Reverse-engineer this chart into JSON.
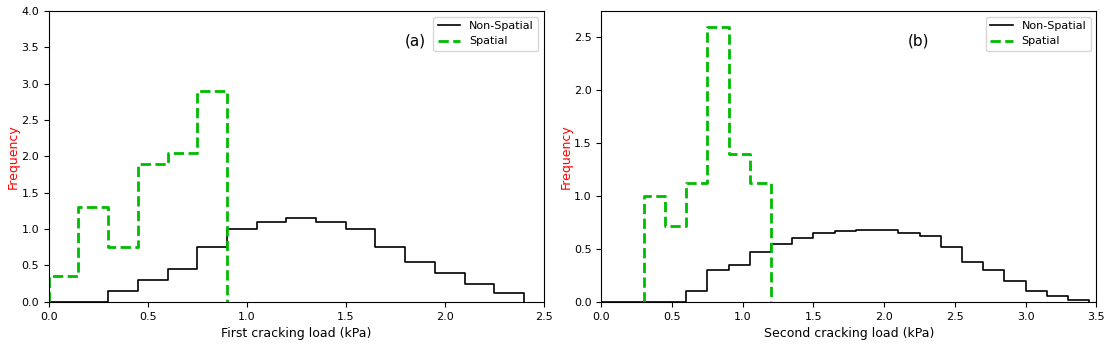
{
  "chart_a": {
    "title": "(a)",
    "xlabel": "First cracking load (kPa)",
    "ylabel": "Frequency",
    "xlim": [
      0,
      2.5
    ],
    "ylim": [
      0,
      4
    ],
    "yticks": [
      0,
      0.5,
      1,
      1.5,
      2,
      2.5,
      3,
      3.5,
      4
    ],
    "xticks": [
      0,
      0.5,
      1,
      1.5,
      2,
      2.5
    ],
    "non_spatial_bins": [
      0.0,
      0.15,
      0.3,
      0.45,
      0.6,
      0.75,
      0.9,
      1.05,
      1.2,
      1.35,
      1.5,
      1.65,
      1.8,
      1.95,
      2.1,
      2.25,
      2.4
    ],
    "non_spatial_vals": [
      0.0,
      0.0,
      0.15,
      0.3,
      0.45,
      0.75,
      1.0,
      1.1,
      1.15,
      1.1,
      1.0,
      0.75,
      0.55,
      0.4,
      0.25,
      0.12
    ],
    "spatial_bins": [
      0.0,
      0.15,
      0.3,
      0.45,
      0.6,
      0.75,
      0.9
    ],
    "spatial_vals": [
      0.35,
      1.3,
      0.75,
      1.9,
      2.05,
      2.9
    ]
  },
  "chart_b": {
    "title": "(b)",
    "xlabel": "Second cracking load (kPa)",
    "ylabel": "Frequency",
    "xlim": [
      0,
      3.5
    ],
    "ylim": [
      0,
      2.75
    ],
    "yticks": [
      0,
      0.5,
      1,
      1.5,
      2,
      2.5
    ],
    "xticks": [
      0,
      0.5,
      1,
      1.5,
      2,
      2.5,
      3,
      3.5
    ],
    "non_spatial_bins": [
      0.0,
      0.15,
      0.3,
      0.45,
      0.6,
      0.75,
      0.9,
      1.05,
      1.2,
      1.35,
      1.5,
      1.65,
      1.8,
      1.95,
      2.1,
      2.25,
      2.4,
      2.55,
      2.7,
      2.85,
      3.0,
      3.15,
      3.3,
      3.45
    ],
    "non_spatial_vals": [
      0.0,
      0.0,
      0.0,
      0.0,
      0.1,
      0.3,
      0.35,
      0.47,
      0.55,
      0.6,
      0.65,
      0.67,
      0.68,
      0.68,
      0.65,
      0.62,
      0.52,
      0.38,
      0.3,
      0.2,
      0.1,
      0.05,
      0.02
    ],
    "spatial_bins": [
      0.3,
      0.45,
      0.6,
      0.75,
      0.9,
      1.05,
      1.2
    ],
    "spatial_vals": [
      1.0,
      0.72,
      1.12,
      2.6,
      1.4,
      1.12
    ]
  },
  "non_spatial_color": "#000000",
  "spatial_color": "#00bb00",
  "legend_labels": [
    "Non-Spatial",
    "Spatial"
  ]
}
